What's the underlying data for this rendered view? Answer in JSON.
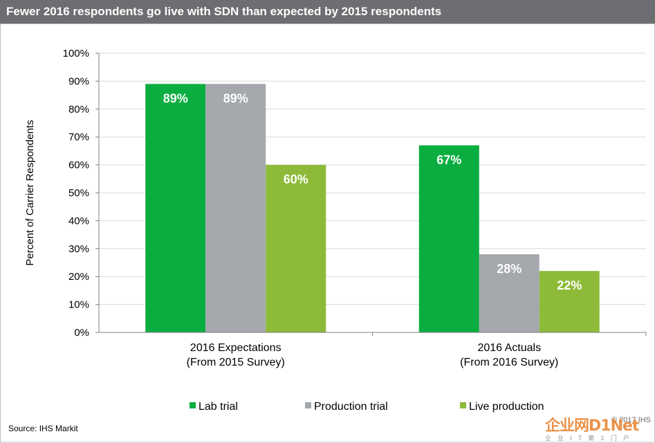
{
  "title": "Fewer 2016 respondents go live with SDN than expected by 2015 respondents",
  "source": "Source: IHS Markit",
  "watermark": {
    "copyright": "© 2017 IHS",
    "logo": "企业网D1Net",
    "tagline": "企业IT第1门户"
  },
  "colors": {
    "title_bar": "#6d6e71",
    "lab_trial": "#0aad3f",
    "production_trial": "#a5a8ad",
    "live_production": "#8dba38"
  },
  "chart_data": {
    "type": "bar",
    "title": "",
    "ylabel": "Percent of Carrier Respondents",
    "xlabel": "",
    "ylim": [
      0,
      100
    ],
    "yticks": [
      "0%",
      "10%",
      "20%",
      "30%",
      "40%",
      "50%",
      "60%",
      "70%",
      "80%",
      "90%",
      "100%"
    ],
    "categories": [
      [
        "2016 Expectations",
        "(From 2015 Survey)"
      ],
      [
        "2016 Actuals",
        "(From 2016 Survey)"
      ]
    ],
    "series": [
      {
        "name": "Lab trial",
        "values": [
          89,
          67
        ],
        "labels": [
          "89%",
          "67%"
        ],
        "color": "#0aad3f"
      },
      {
        "name": "Production trial",
        "values": [
          89,
          28
        ],
        "labels": [
          "89%",
          "28%"
        ],
        "color": "#a5a8ad"
      },
      {
        "name": "Live production",
        "values": [
          60,
          22
        ],
        "labels": [
          "60%",
          "22%"
        ],
        "color": "#8dba38"
      }
    ],
    "grid": true,
    "legend": "bottom"
  }
}
